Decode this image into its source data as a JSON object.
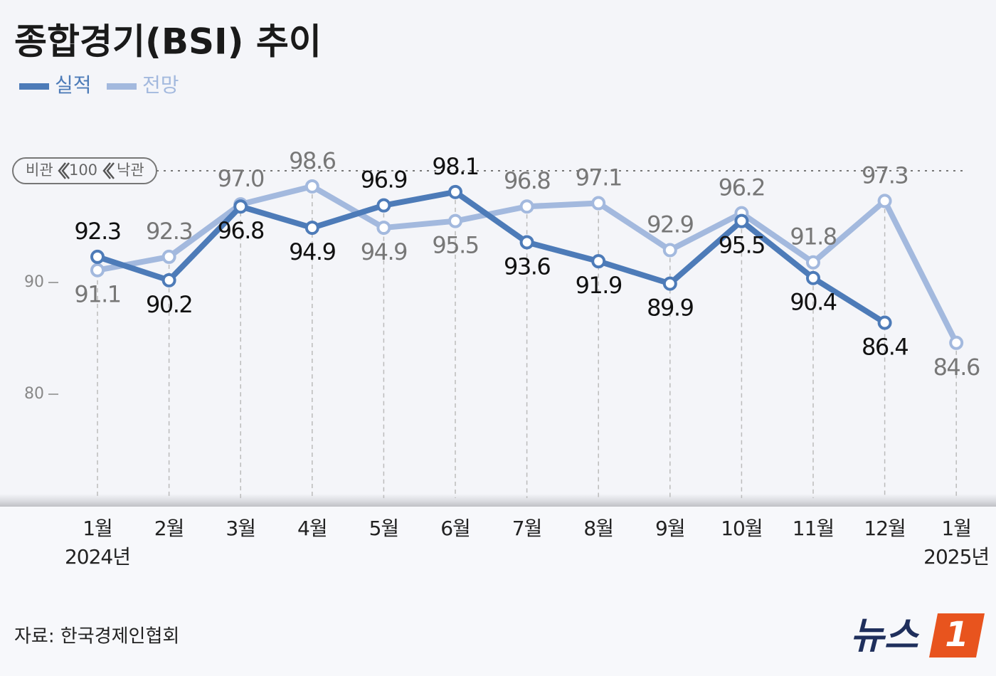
{
  "chart_data": {
    "type": "line",
    "title": "종합경기(BSI) 추이",
    "categories": [
      "1월\n2024년",
      "2월",
      "3월",
      "4월",
      "5월",
      "6월",
      "7월",
      "8월",
      "9월",
      "10월",
      "11월",
      "12월",
      "1월\n2025년"
    ],
    "series": [
      {
        "name": "실적",
        "color": "#4d7bb8",
        "values": [
          92.3,
          90.2,
          96.8,
          94.9,
          96.9,
          98.1,
          93.6,
          91.9,
          89.9,
          95.5,
          90.4,
          86.4,
          null
        ],
        "value_labels": [
          "92.3",
          "90.2",
          "96.8",
          "94.9",
          "96.9",
          "98.1",
          "93.6",
          "91.9",
          "89.9",
          "95.5",
          "90.4",
          "86.4",
          null
        ]
      },
      {
        "name": "전망",
        "color": "#a3b9de",
        "values": [
          91.1,
          92.3,
          97,
          98.6,
          94.9,
          95.5,
          96.8,
          97.1,
          92.9,
          96.2,
          91.8,
          97.3,
          84.6
        ],
        "value_labels": [
          "91.1",
          "92.3",
          "97.0",
          "98.6",
          "94.9",
          "95.5",
          "96.8",
          "97.1",
          "92.9",
          "96.2",
          "91.8",
          "97.3",
          "84.6"
        ]
      }
    ],
    "ylim": [
      70,
      105
    ],
    "yticks": [
      80,
      90
    ],
    "reference": {
      "value": 100,
      "left": "비관",
      "right": "낙관"
    },
    "source": "자료: 한국경제인협회",
    "logo": {
      "text": "뉴스",
      "mark": "1"
    }
  }
}
